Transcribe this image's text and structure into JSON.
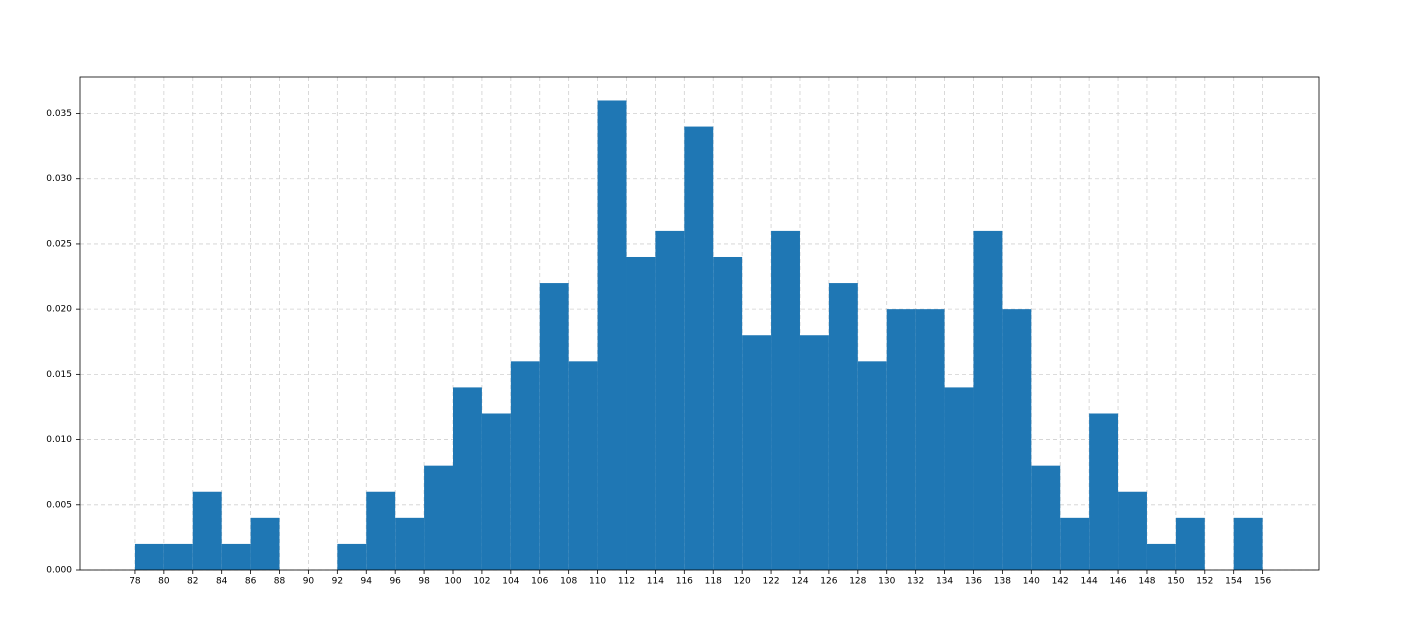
{
  "chart_data": {
    "type": "histogram",
    "bins": [
      78,
      80,
      82,
      84,
      86,
      88,
      90,
      92,
      94,
      96,
      98,
      100,
      102,
      104,
      106,
      108,
      110,
      112,
      114,
      116,
      118,
      120,
      122,
      124,
      126,
      128,
      130,
      132,
      134,
      136,
      138,
      140,
      142,
      144,
      146,
      148,
      150,
      152,
      154,
      156
    ],
    "values": [
      0.002,
      0.002,
      0.006,
      0.002,
      0.004,
      0,
      0,
      0.002,
      0.006,
      0.004,
      0.008,
      0.014,
      0.012,
      0.016,
      0.022,
      0.016,
      0.036,
      0.024,
      0.026,
      0.034,
      0.024,
      0.018,
      0.026,
      0.018,
      0.022,
      0.016,
      0.02,
      0.02,
      0.014,
      0.026,
      0.02,
      0.008,
      0.004,
      0.012,
      0.006,
      0.002,
      0.004,
      0,
      0.004
    ],
    "color": "#1f77b4",
    "xlim": [
      74.2,
      159.9
    ],
    "ylim": [
      0,
      0.0378
    ],
    "xticks": [
      78,
      80,
      82,
      84,
      86,
      88,
      90,
      92,
      94,
      96,
      98,
      100,
      102,
      104,
      106,
      108,
      110,
      112,
      114,
      116,
      118,
      120,
      122,
      124,
      126,
      128,
      130,
      132,
      134,
      136,
      138,
      140,
      142,
      144,
      146,
      148,
      150,
      152,
      154,
      156
    ],
    "yticks": [
      {
        "value": 0,
        "label": "0.000"
      },
      {
        "value": 0.005,
        "label": "0.005"
      },
      {
        "value": 0.01,
        "label": "0.010"
      },
      {
        "value": 0.015,
        "label": "0.015"
      },
      {
        "value": 0.02,
        "label": "0.020"
      },
      {
        "value": 0.025,
        "label": "0.025"
      },
      {
        "value": 0.03,
        "label": "0.030"
      },
      {
        "value": 0.035,
        "label": "0.035"
      }
    ],
    "grid": true
  }
}
